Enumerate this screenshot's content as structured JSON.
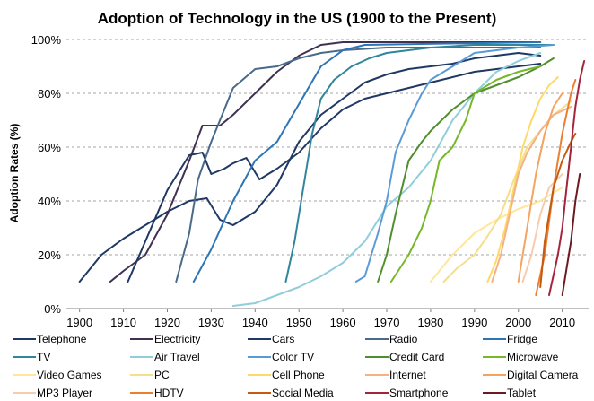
{
  "chart_data": {
    "type": "line",
    "title": "Adoption  of Technology in the US (1900 to the Present)",
    "ylabel": "Adoption Rates (%)",
    "xlabel": "",
    "xlim": [
      1897,
      2016
    ],
    "ylim": [
      0,
      100
    ],
    "x_ticks": [
      "1900",
      "1910",
      "1920",
      "1930",
      "1940",
      "1950",
      "1960",
      "1970",
      "1980",
      "1990",
      "2000",
      "2010"
    ],
    "y_ticks": [
      "0%",
      "20%",
      "40%",
      "60%",
      "80%",
      "100%"
    ],
    "grid": "horizontal dashed",
    "legend_position": "bottom",
    "series": [
      {
        "name": "Telephone",
        "color": "#1f3864",
        "points": [
          [
            1900,
            10
          ],
          [
            1902,
            14
          ],
          [
            1905,
            20
          ],
          [
            1910,
            26
          ],
          [
            1915,
            31
          ],
          [
            1920,
            36
          ],
          [
            1925,
            40
          ],
          [
            1929,
            41
          ],
          [
            1932,
            33
          ],
          [
            1935,
            31
          ],
          [
            1940,
            36
          ],
          [
            1945,
            46
          ],
          [
            1950,
            62
          ],
          [
            1955,
            72
          ],
          [
            1960,
            78
          ],
          [
            1965,
            84
          ],
          [
            1970,
            87
          ],
          [
            1975,
            89
          ],
          [
            1980,
            90
          ],
          [
            1985,
            91
          ],
          [
            1990,
            93
          ],
          [
            1995,
            94
          ],
          [
            2000,
            95
          ],
          [
            2005,
            94
          ]
        ]
      },
      {
        "name": "Electricity",
        "color": "#3f3151",
        "points": [
          [
            1907,
            10
          ],
          [
            1910,
            14
          ],
          [
            1915,
            20
          ],
          [
            1920,
            35
          ],
          [
            1925,
            55
          ],
          [
            1928,
            68
          ],
          [
            1932,
            68
          ],
          [
            1935,
            72
          ],
          [
            1940,
            80
          ],
          [
            1945,
            88
          ],
          [
            1950,
            94
          ],
          [
            1955,
            98
          ],
          [
            1960,
            99
          ],
          [
            2005,
            99
          ]
        ]
      },
      {
        "name": "Cars",
        "color": "#203864",
        "points": [
          [
            1911,
            10
          ],
          [
            1915,
            25
          ],
          [
            1920,
            44
          ],
          [
            1925,
            57
          ],
          [
            1928,
            58
          ],
          [
            1930,
            50
          ],
          [
            1933,
            52
          ],
          [
            1935,
            54
          ],
          [
            1938,
            56
          ],
          [
            1941,
            48
          ],
          [
            1945,
            52
          ],
          [
            1950,
            58
          ],
          [
            1955,
            67
          ],
          [
            1960,
            74
          ],
          [
            1965,
            78
          ],
          [
            1970,
            80
          ],
          [
            1975,
            82
          ],
          [
            1980,
            84
          ],
          [
            1985,
            86
          ],
          [
            1990,
            88
          ],
          [
            1995,
            89
          ],
          [
            2000,
            90
          ],
          [
            2005,
            91
          ]
        ]
      },
      {
        "name": "Radio",
        "color": "#4a6a8a",
        "points": [
          [
            1922,
            10
          ],
          [
            1925,
            28
          ],
          [
            1927,
            48
          ],
          [
            1930,
            62
          ],
          [
            1935,
            82
          ],
          [
            1940,
            89
          ],
          [
            1945,
            90
          ],
          [
            1950,
            93
          ],
          [
            1955,
            95
          ],
          [
            1960,
            96
          ],
          [
            1970,
            97
          ],
          [
            2005,
            97
          ]
        ]
      },
      {
        "name": "Fridge",
        "color": "#2e75b6",
        "points": [
          [
            1926,
            10
          ],
          [
            1930,
            22
          ],
          [
            1935,
            40
          ],
          [
            1940,
            55
          ],
          [
            1945,
            62
          ],
          [
            1950,
            76
          ],
          [
            1955,
            90
          ],
          [
            1960,
            96
          ],
          [
            1965,
            98
          ],
          [
            2005,
            99
          ]
        ]
      },
      {
        "name": "TV",
        "color": "#31859c",
        "points": [
          [
            1947,
            10
          ],
          [
            1949,
            25
          ],
          [
            1951,
            45
          ],
          [
            1953,
            65
          ],
          [
            1955,
            78
          ],
          [
            1958,
            85
          ],
          [
            1962,
            90
          ],
          [
            1966,
            93
          ],
          [
            1970,
            95
          ],
          [
            1980,
            97
          ],
          [
            1990,
            98
          ],
          [
            2000,
            98
          ],
          [
            2008,
            98
          ]
        ]
      },
      {
        "name": "Air Travel",
        "color": "#92cddc",
        "points": [
          [
            1935,
            1
          ],
          [
            1940,
            2
          ],
          [
            1945,
            5
          ],
          [
            1950,
            8
          ],
          [
            1955,
            12
          ],
          [
            1960,
            17
          ],
          [
            1965,
            25
          ],
          [
            1970,
            38
          ],
          [
            1975,
            45
          ],
          [
            1980,
            55
          ],
          [
            1985,
            70
          ],
          [
            1990,
            80
          ],
          [
            1995,
            88
          ],
          [
            2000,
            92
          ],
          [
            2005,
            95
          ]
        ]
      },
      {
        "name": "Color TV",
        "color": "#5b9bd5",
        "points": [
          [
            1963,
            10
          ],
          [
            1965,
            12
          ],
          [
            1968,
            28
          ],
          [
            1970,
            40
          ],
          [
            1972,
            58
          ],
          [
            1975,
            70
          ],
          [
            1978,
            80
          ],
          [
            1980,
            85
          ],
          [
            1985,
            90
          ],
          [
            1990,
            95
          ],
          [
            2000,
            97
          ],
          [
            2008,
            98
          ]
        ]
      },
      {
        "name": "Credit Card",
        "color": "#4f8f2f",
        "points": [
          [
            1968,
            10
          ],
          [
            1970,
            20
          ],
          [
            1972,
            35
          ],
          [
            1975,
            55
          ],
          [
            1978,
            62
          ],
          [
            1980,
            66
          ],
          [
            1985,
            74
          ],
          [
            1990,
            80
          ],
          [
            1995,
            83
          ],
          [
            2000,
            86
          ],
          [
            2005,
            90
          ],
          [
            2008,
            93
          ]
        ]
      },
      {
        "name": "Microwave",
        "color": "#76b82a",
        "points": [
          [
            1971,
            10
          ],
          [
            1975,
            20
          ],
          [
            1978,
            30
          ],
          [
            1980,
            40
          ],
          [
            1982,
            55
          ],
          [
            1985,
            60
          ],
          [
            1988,
            70
          ],
          [
            1990,
            80
          ],
          [
            1995,
            85
          ],
          [
            2000,
            88
          ],
          [
            2005,
            90
          ]
        ]
      },
      {
        "name": "Video Games",
        "color": "#ffe699",
        "points": [
          [
            1980,
            10
          ],
          [
            1985,
            20
          ],
          [
            1990,
            28
          ],
          [
            1995,
            33
          ],
          [
            2000,
            37
          ],
          [
            2005,
            40
          ],
          [
            2010,
            45
          ]
        ]
      },
      {
        "name": "PC",
        "color": "#f4e08a",
        "points": [
          [
            1983,
            10
          ],
          [
            1986,
            15
          ],
          [
            1990,
            20
          ],
          [
            1993,
            27
          ],
          [
            1996,
            35
          ],
          [
            1999,
            48
          ],
          [
            2002,
            60
          ],
          [
            2005,
            66
          ],
          [
            2008,
            72
          ],
          [
            2012,
            77
          ]
        ]
      },
      {
        "name": "Cell Phone",
        "color": "#ffd966",
        "points": [
          [
            1993,
            10
          ],
          [
            1995,
            18
          ],
          [
            1997,
            30
          ],
          [
            1999,
            45
          ],
          [
            2001,
            60
          ],
          [
            2003,
            70
          ],
          [
            2005,
            78
          ],
          [
            2007,
            83
          ],
          [
            2009,
            86
          ]
        ]
      },
      {
        "name": "Internet",
        "color": "#f4b183",
        "points": [
          [
            1994,
            10
          ],
          [
            1996,
            20
          ],
          [
            1998,
            35
          ],
          [
            2000,
            50
          ],
          [
            2002,
            58
          ],
          [
            2005,
            66
          ],
          [
            2008,
            72
          ],
          [
            2012,
            75
          ]
        ]
      },
      {
        "name": "Digital Camera",
        "color": "#f4a460",
        "points": [
          [
            2000,
            10
          ],
          [
            2002,
            30
          ],
          [
            2004,
            50
          ],
          [
            2006,
            65
          ],
          [
            2008,
            75
          ],
          [
            2010,
            80
          ]
        ]
      },
      {
        "name": "MP3 Player",
        "color": "#f8cbad",
        "points": [
          [
            2001,
            10
          ],
          [
            2003,
            20
          ],
          [
            2005,
            35
          ],
          [
            2007,
            45
          ],
          [
            2010,
            50
          ]
        ]
      },
      {
        "name": "HDTV",
        "color": "#ed7d31",
        "points": [
          [
            2004,
            5
          ],
          [
            2006,
            20
          ],
          [
            2008,
            45
          ],
          [
            2010,
            65
          ],
          [
            2012,
            80
          ],
          [
            2013,
            85
          ]
        ]
      },
      {
        "name": "Social Media",
        "color": "#c55a11",
        "points": [
          [
            2005,
            8
          ],
          [
            2006,
            25
          ],
          [
            2008,
            45
          ],
          [
            2010,
            55
          ],
          [
            2012,
            62
          ],
          [
            2013,
            65
          ]
        ]
      },
      {
        "name": "Smartphone",
        "color": "#a5243c",
        "points": [
          [
            2007,
            5
          ],
          [
            2009,
            20
          ],
          [
            2010,
            30
          ],
          [
            2011,
            45
          ],
          [
            2012,
            60
          ],
          [
            2013,
            75
          ],
          [
            2014,
            85
          ],
          [
            2015,
            92
          ]
        ]
      },
      {
        "name": "Tablet",
        "color": "#6b1a1f",
        "points": [
          [
            2010,
            5
          ],
          [
            2011,
            15
          ],
          [
            2012,
            25
          ],
          [
            2013,
            40
          ],
          [
            2014,
            50
          ]
        ]
      }
    ]
  }
}
